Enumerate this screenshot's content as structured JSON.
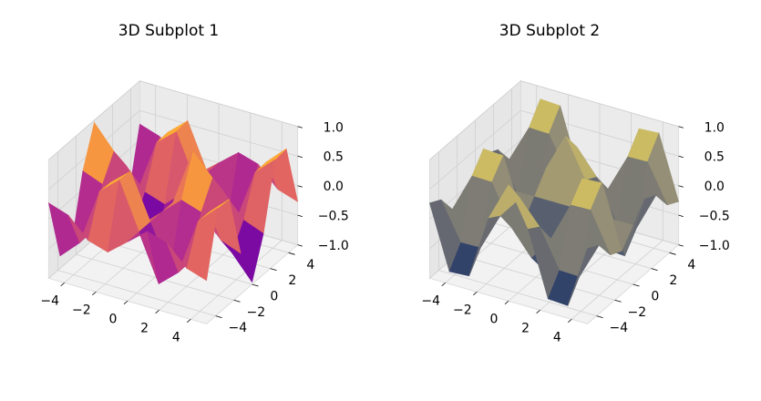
{
  "chart_data": [
    {
      "type": "surface3d",
      "title": "3D Subplot 1",
      "colormap": "plasma",
      "x": [
        -5,
        -3.75,
        -2.5,
        -1.25,
        0,
        1.25,
        2.5,
        3.75,
        5
      ],
      "y": [
        -5,
        -3.75,
        -2.5,
        -1.25,
        0,
        1.25,
        2.5,
        3.75,
        5
      ],
      "z": [
        [
          0.27,
          0.16,
          -0.17,
          -0.27,
          0,
          0.27,
          0.17,
          -0.16,
          -0.27
        ],
        [
          -0.79,
          -0.47,
          0.49,
          0.78,
          0,
          -0.78,
          -0.49,
          0.47,
          0.79
        ],
        [
          -0.77,
          -0.46,
          0.48,
          0.76,
          0,
          -0.76,
          -0.48,
          0.46,
          0.77
        ],
        [
          0.31,
          0.18,
          -0.19,
          -0.3,
          0,
          0.3,
          0.19,
          -0.18,
          -0.31
        ],
        [
          0.96,
          0.57,
          -0.6,
          -0.95,
          0,
          0.95,
          0.6,
          -0.57,
          -0.96
        ],
        [
          0.31,
          0.18,
          -0.19,
          -0.3,
          0,
          0.3,
          0.19,
          -0.18,
          -0.31
        ],
        [
          -0.77,
          -0.46,
          0.48,
          0.76,
          0,
          -0.76,
          -0.48,
          0.46,
          0.77
        ],
        [
          -0.79,
          -0.47,
          0.49,
          0.78,
          0,
          -0.78,
          -0.49,
          0.47,
          0.79
        ],
        [
          0.27,
          0.16,
          -0.17,
          -0.27,
          0,
          0.27,
          0.17,
          -0.16,
          -0.27
        ]
      ],
      "xlim": [
        -5,
        5
      ],
      "ylim": [
        -5,
        5
      ],
      "zlim": [
        -1,
        1
      ],
      "xticks": [
        {
          "value": -4,
          "label": "−4"
        },
        {
          "value": -2,
          "label": "−2"
        },
        0,
        2,
        4
      ],
      "yticks": [
        {
          "value": -4,
          "label": "−4"
        },
        {
          "value": -2,
          "label": "−2"
        },
        0,
        2,
        4
      ],
      "zticks": [
        {
          "value": -1,
          "label": "−1.0"
        },
        {
          "value": -0.5,
          "label": "−0.5"
        },
        {
          "value": 0,
          "label": "0.0"
        },
        0.5,
        {
          "value": 1,
          "label": "1.0"
        }
      ],
      "grid": true
    },
    {
      "type": "surface3d",
      "title": "3D Subplot 2",
      "colormap": "cividis",
      "x": [
        -5,
        -3.75,
        -2.5,
        -1.25,
        0,
        1.25,
        2.5,
        3.75,
        5
      ],
      "y": [
        -5,
        -3.75,
        -2.5,
        -1.25,
        0,
        1.25,
        2.5,
        3.75,
        5
      ],
      "z": [
        [
          0.27,
          -0.79,
          -0.77,
          0.31,
          0.96,
          0.31,
          -0.77,
          -0.79,
          0.27
        ],
        [
          0.16,
          -0.47,
          -0.46,
          0.18,
          0.57,
          0.18,
          -0.46,
          -0.47,
          0.16
        ],
        [
          -0.17,
          0.49,
          0.48,
          -0.19,
          -0.6,
          -0.19,
          0.48,
          0.49,
          -0.17
        ],
        [
          -0.27,
          0.78,
          0.76,
          -0.3,
          -0.95,
          -0.3,
          0.76,
          0.78,
          -0.27
        ],
        [
          0,
          0,
          0,
          0,
          0,
          0,
          0,
          0,
          0
        ],
        [
          0.27,
          -0.78,
          -0.76,
          0.3,
          0.95,
          0.3,
          -0.76,
          -0.78,
          0.27
        ],
        [
          0.17,
          -0.49,
          -0.48,
          0.19,
          0.6,
          0.19,
          -0.48,
          -0.49,
          0.17
        ],
        [
          -0.16,
          0.47,
          0.46,
          -0.18,
          -0.57,
          -0.18,
          0.46,
          0.47,
          -0.16
        ],
        [
          -0.27,
          0.79,
          0.77,
          -0.31,
          -0.96,
          -0.31,
          0.77,
          0.79,
          -0.27
        ]
      ],
      "xlim": [
        -5,
        5
      ],
      "ylim": [
        -5,
        5
      ],
      "zlim": [
        -1,
        1
      ],
      "xticks": [
        {
          "value": -4,
          "label": "−4"
        },
        {
          "value": -2,
          "label": "−2"
        },
        0,
        2,
        4
      ],
      "yticks": [
        {
          "value": -4,
          "label": "−4"
        },
        {
          "value": -2,
          "label": "−2"
        },
        0,
        2,
        4
      ],
      "zticks": [
        {
          "value": -1,
          "label": "−1.0"
        },
        {
          "value": -0.5,
          "label": "−0.5"
        },
        {
          "value": 0,
          "label": "0.0"
        },
        0.5,
        {
          "value": 1,
          "label": "1.0"
        }
      ],
      "grid": true
    }
  ]
}
